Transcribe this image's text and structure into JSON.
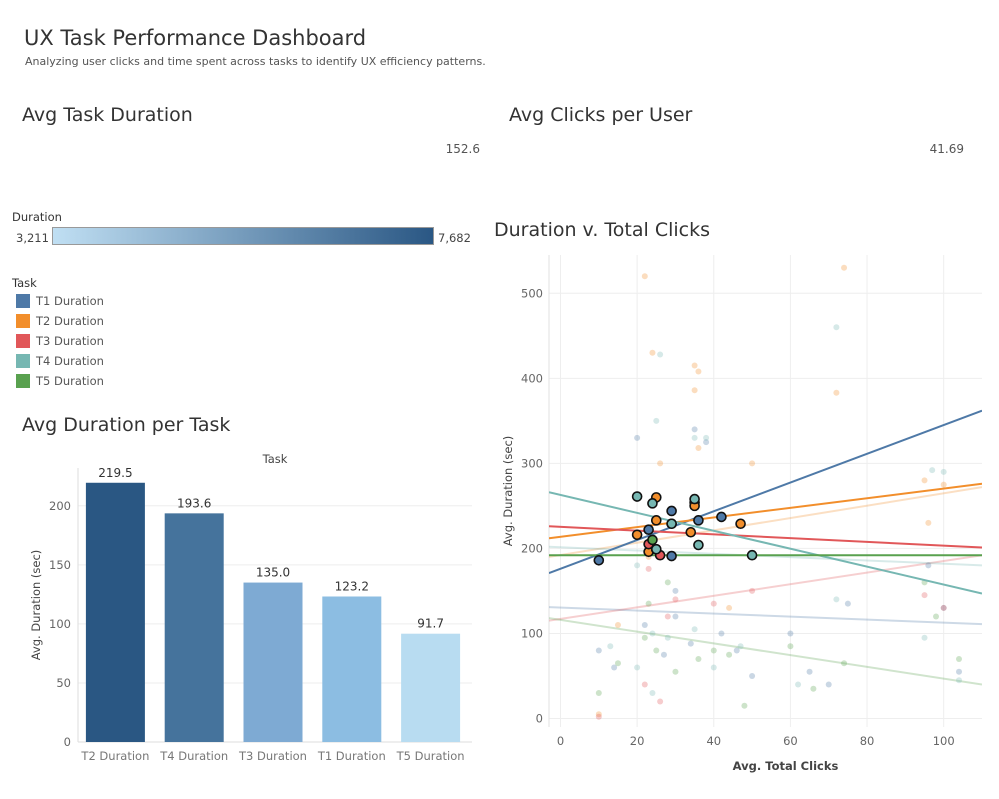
{
  "dashboard": {
    "title": "UX Task Performance Dashboard",
    "subtitle": "Analyzing user clicks and time spent across tasks to identify UX efficiency patterns."
  },
  "kpis": {
    "avg_duration": {
      "title": "Avg Task Duration",
      "value": "152.6"
    },
    "avg_clicks": {
      "title": "Avg Clicks per User",
      "value": "41.69"
    }
  },
  "color_legend": {
    "title": "Duration",
    "min_label": "3,211",
    "max_label": "7,682",
    "min_color": "#c0dff3",
    "max_color": "#2a5784"
  },
  "task_legend": {
    "title": "Task",
    "items": [
      {
        "label": "T1 Duration",
        "color": "#4e79a7"
      },
      {
        "label": "T2 Duration",
        "color": "#f28e2b"
      },
      {
        "label": "T3 Duration",
        "color": "#e15759"
      },
      {
        "label": "T4 Duration",
        "color": "#76b7b2"
      },
      {
        "label": "T5 Duration",
        "color": "#59a14f"
      }
    ]
  },
  "bar_sheet_title": "Avg Duration per Task",
  "scatter_sheet_title": "Duration v. Total Clicks",
  "chart_data": [
    {
      "type": "bar",
      "title": "Task",
      "xlabel": "",
      "ylabel": "Avg. Duration (sec)",
      "categories": [
        "T2 Duration",
        "T4 Duration",
        "T3 Duration",
        "T1 Duration",
        "T5 Duration"
      ],
      "values": [
        219.5,
        193.6,
        135.0,
        123.2,
        91.7
      ],
      "value_labels": [
        "219.5",
        "193.6",
        "135.0",
        "123.2",
        "91.7"
      ],
      "colors": [
        "#2a5783",
        "#45739c",
        "#7eaad3",
        "#8cbde2",
        "#b8dcf1"
      ],
      "yticks": [
        0,
        50,
        100,
        150,
        200
      ],
      "ylim": [
        0,
        232
      ],
      "grid": true
    },
    {
      "type": "scatter",
      "xlabel": "Avg. Total Clicks",
      "ylabel": "Avg. Duration (sec)",
      "xlim": [
        -3,
        110
      ],
      "ylim": [
        -10,
        545
      ],
      "xticks": [
        0,
        20,
        40,
        60,
        80,
        100
      ],
      "yticks": [
        0,
        100,
        200,
        300,
        400,
        500
      ],
      "grid": true,
      "highlighted_points": [
        {
          "task": "T1 Duration",
          "points": [
            [
              10,
              186
            ],
            [
              23,
              222
            ],
            [
              29,
              244
            ],
            [
              36,
              233
            ],
            [
              42,
              237
            ],
            [
              35,
              254
            ],
            [
              29,
              191
            ]
          ]
        },
        {
          "task": "T2 Duration",
          "points": [
            [
              20,
              216
            ],
            [
              23,
              196
            ],
            [
              25,
              233
            ],
            [
              29,
              229
            ],
            [
              34,
              219
            ],
            [
              35,
              250
            ],
            [
              47,
              229
            ],
            [
              25,
              260
            ]
          ]
        },
        {
          "task": "T3 Duration",
          "points": [
            [
              23,
              205
            ],
            [
              25,
              199
            ],
            [
              26,
              192
            ]
          ]
        },
        {
          "task": "T4 Duration",
          "points": [
            [
              20,
              261
            ],
            [
              24,
              253
            ],
            [
              25,
              199
            ],
            [
              29,
              229
            ],
            [
              35,
              258
            ],
            [
              36,
              204
            ],
            [
              50,
              192
            ]
          ]
        },
        {
          "task": "T5 Duration",
          "points": [
            [
              24,
              210
            ]
          ]
        }
      ],
      "faded_points": [
        {
          "task": "T1 Duration",
          "points": [
            [
              10,
              80
            ],
            [
              14,
              60
            ],
            [
              22,
              110
            ],
            [
              27,
              75
            ],
            [
              30,
              120
            ],
            [
              34,
              88
            ],
            [
              42,
              100
            ],
            [
              50,
              50
            ],
            [
              70,
              40
            ],
            [
              75,
              135
            ],
            [
              96,
              180
            ],
            [
              100,
              130
            ],
            [
              104,
              55
            ],
            [
              65,
              55
            ],
            [
              20,
              330
            ],
            [
              38,
              325
            ],
            [
              35,
              340
            ],
            [
              30,
              150
            ],
            [
              46,
              80
            ],
            [
              60,
              100
            ]
          ]
        },
        {
          "task": "T2 Duration",
          "points": [
            [
              22,
              520
            ],
            [
              24,
              430
            ],
            [
              35,
              415
            ],
            [
              36,
              408
            ],
            [
              35,
              386
            ],
            [
              72,
              383
            ],
            [
              74,
              530
            ],
            [
              26,
              300
            ],
            [
              50,
              300
            ],
            [
              95,
              280
            ],
            [
              100,
              275
            ],
            [
              44,
              130
            ],
            [
              15,
              110
            ],
            [
              10,
              5
            ],
            [
              96,
              230
            ],
            [
              36,
              318
            ],
            [
              23,
              190
            ]
          ]
        },
        {
          "task": "T3 Duration",
          "points": [
            [
              10,
              2
            ],
            [
              30,
              140
            ],
            [
              28,
              120
            ],
            [
              40,
              135
            ],
            [
              50,
              150
            ],
            [
              22,
              40
            ],
            [
              26,
              20
            ],
            [
              95,
              145
            ],
            [
              100,
              130
            ],
            [
              23,
              176
            ]
          ]
        },
        {
          "task": "T4 Duration",
          "points": [
            [
              26,
              428
            ],
            [
              25,
              350
            ],
            [
              35,
              330
            ],
            [
              38,
              330
            ],
            [
              72,
              460
            ],
            [
              97,
              292
            ],
            [
              100,
              290
            ],
            [
              20,
              60
            ],
            [
              24,
              30
            ],
            [
              72,
              140
            ],
            [
              95,
              95
            ],
            [
              104,
              45
            ],
            [
              24,
              100
            ],
            [
              28,
              95
            ],
            [
              35,
              105
            ],
            [
              47,
              85
            ],
            [
              13,
              85
            ],
            [
              40,
              60
            ],
            [
              62,
              40
            ],
            [
              20,
              180
            ]
          ]
        },
        {
          "task": "T5 Duration",
          "points": [
            [
              10,
              30
            ],
            [
              15,
              65
            ],
            [
              22,
              95
            ],
            [
              25,
              80
            ],
            [
              28,
              160
            ],
            [
              30,
              55
            ],
            [
              36,
              70
            ],
            [
              48,
              15
            ],
            [
              60,
              85
            ],
            [
              66,
              35
            ],
            [
              74,
              65
            ],
            [
              95,
              160
            ],
            [
              98,
              120
            ],
            [
              104,
              70
            ],
            [
              40,
              80
            ],
            [
              44,
              75
            ],
            [
              23,
              135
            ]
          ]
        }
      ],
      "trend_lines": [
        {
          "task": "T1 Duration",
          "start": [
            -3,
            171
          ],
          "end": [
            110,
            362
          ]
        },
        {
          "task": "T2 Duration",
          "start": [
            -3,
            212
          ],
          "end": [
            110,
            276
          ]
        },
        {
          "task": "T3 Duration",
          "start": [
            -3,
            226
          ],
          "end": [
            110,
            201
          ]
        },
        {
          "task": "T4 Duration",
          "start": [
            -3,
            266
          ],
          "end": [
            110,
            147
          ]
        },
        {
          "task": "T5 Duration",
          "start": [
            -3,
            192
          ],
          "end": [
            110,
            192
          ]
        }
      ],
      "faded_trend_lines": [
        {
          "task": "T1 Duration",
          "start": [
            -3,
            131
          ],
          "end": [
            110,
            111
          ]
        },
        {
          "task": "T2 Duration",
          "start": [
            -3,
            190
          ],
          "end": [
            110,
            272
          ]
        },
        {
          "task": "T3 Duration",
          "start": [
            -3,
            115
          ],
          "end": [
            110,
            192
          ]
        },
        {
          "task": "T4 Duration",
          "start": [
            -3,
            202
          ],
          "end": [
            110,
            180
          ]
        },
        {
          "task": "T5 Duration",
          "start": [
            -3,
            118
          ],
          "end": [
            110,
            40
          ]
        }
      ]
    }
  ]
}
